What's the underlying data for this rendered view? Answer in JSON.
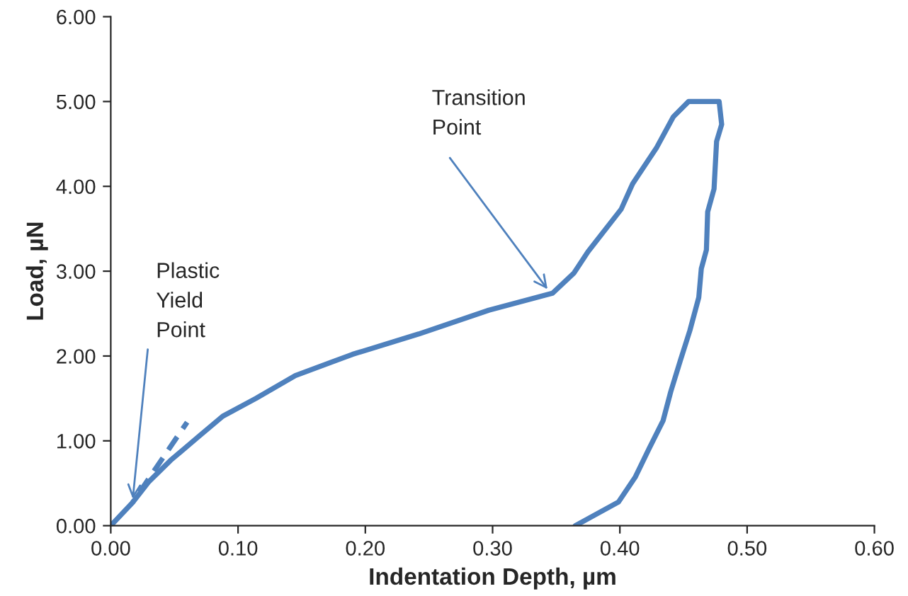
{
  "chart_data": {
    "type": "line",
    "xlabel": "Indentation Depth, µm",
    "ylabel": "Load, µN",
    "series": [
      {
        "color": "#4f81bd",
        "line_style": "solid",
        "x": [
          0,
          0.017,
          0.03,
          0.047,
          0.069,
          0.088,
          0.114,
          0.145,
          0.19,
          0.242,
          0.297,
          0.347,
          0.364,
          0.375,
          0.401,
          0.41,
          0.429,
          0.442,
          0.454,
          0.47,
          0.478,
          0.48,
          0.476,
          0.474,
          0.469,
          0.468,
          0.464,
          0.462,
          0.455,
          0.448,
          0.44,
          0.434,
          0.423,
          0.412,
          0.399,
          0.365
        ],
        "values": [
          0,
          0.27,
          0.52,
          0.77,
          1.05,
          1.29,
          1.5,
          1.77,
          2.02,
          2.26,
          2.54,
          2.74,
          2.98,
          3.23,
          3.73,
          4.03,
          4.46,
          4.82,
          5.0,
          5.0,
          5.0,
          4.73,
          4.53,
          3.97,
          3.7,
          3.25,
          3.03,
          2.69,
          2.3,
          1.97,
          1.58,
          1.24,
          0.91,
          0.57,
          0.28,
          0
        ]
      },
      {
        "color": "#4f81bd",
        "line_style": "dashed",
        "x": [
          0.017,
          0.06
        ],
        "values": [
          0.27,
          1.22
        ]
      }
    ],
    "xlim": [
      0,
      0.6
    ],
    "ylim": [
      0,
      6
    ],
    "xticks": [
      {
        "value": 0,
        "label": "0.00"
      },
      {
        "value": 0.1,
        "label": "0.10"
      },
      {
        "value": 0.2,
        "label": "0.20"
      },
      {
        "value": 0.3,
        "label": "0.30"
      },
      {
        "value": 0.4,
        "label": "0.40"
      },
      {
        "value": 0.5,
        "label": "0.50"
      },
      {
        "value": 0.6,
        "label": "0.60"
      }
    ],
    "yticks": [
      {
        "value": 0,
        "label": "0.00"
      },
      {
        "value": 1,
        "label": "1.00"
      },
      {
        "value": 2,
        "label": "2.00"
      },
      {
        "value": 3,
        "label": "3.00"
      },
      {
        "value": 4,
        "label": "4.00"
      },
      {
        "value": 5,
        "label": "5.00"
      },
      {
        "value": 6,
        "label": "6.00"
      }
    ],
    "annotations": [
      {
        "text": "Plastic\nYield\nPoint",
        "x": 0.017,
        "y": 0.27
      },
      {
        "text": "Transition\nPoint",
        "x": 0.345,
        "y": 2.75
      }
    ],
    "grid": false
  }
}
